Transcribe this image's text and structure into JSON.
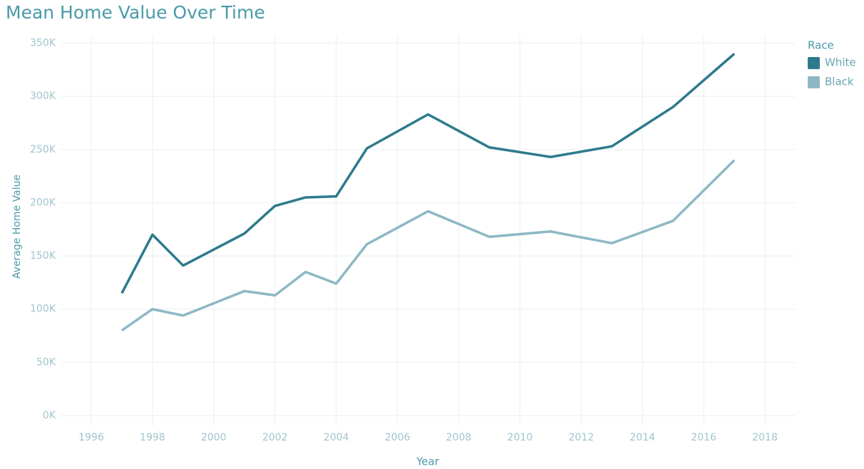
{
  "chart_data": {
    "type": "line",
    "title": "Mean Home Value Over Time",
    "x_label": "Year",
    "y_label": "Average Home Value",
    "legend_title": "Race",
    "legend": "right",
    "x": [
      1997,
      1998,
      1999,
      2001,
      2002,
      2003,
      2004,
      2005,
      2007,
      2009,
      2011,
      2013,
      2015,
      2017
    ],
    "series": [
      {
        "name": "White",
        "color": "#2e7a8c",
        "values": [
          115000,
          170000,
          141000,
          171000,
          197000,
          205000,
          206000,
          251000,
          283000,
          252000,
          243000,
          253000,
          290000,
          340000
        ]
      },
      {
        "name": "Black",
        "color": "#8db8c4",
        "values": [
          80000,
          100000,
          94000,
          117000,
          113000,
          135000,
          124000,
          161000,
          192000,
          168000,
          173000,
          162000,
          183000,
          240000
        ]
      }
    ],
    "xlim": [
      1995,
      2019
    ],
    "xticks": [
      1996,
      1998,
      2000,
      2002,
      2004,
      2006,
      2008,
      2010,
      2012,
      2014,
      2016,
      2018
    ],
    "ylim": [
      -10000,
      357000
    ],
    "yticks": [
      {
        "value": 0,
        "label": "0K"
      },
      {
        "value": 50000,
        "label": "50K"
      },
      {
        "value": 100000,
        "label": "100K"
      },
      {
        "value": 150000,
        "label": "150K"
      },
      {
        "value": 200000,
        "label": "200K"
      },
      {
        "value": 250000,
        "label": "250K"
      },
      {
        "value": 300000,
        "label": "300K"
      },
      {
        "value": 350000,
        "label": "350K"
      }
    ],
    "grid": true
  }
}
